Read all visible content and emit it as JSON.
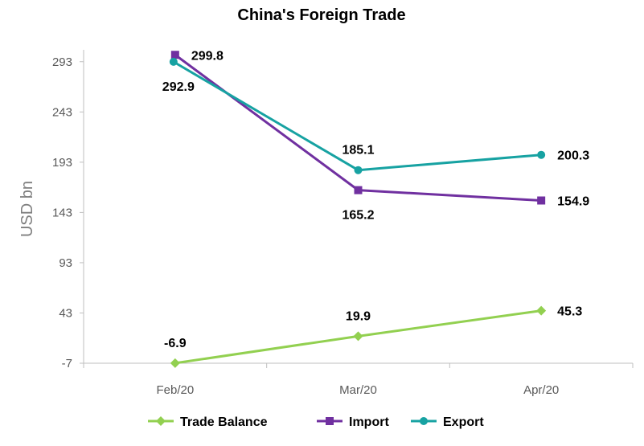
{
  "chart_data": {
    "type": "line",
    "title": "China's Foreign Trade",
    "xlabel": "",
    "ylabel": "USD bn",
    "categories": [
      "Feb/20",
      "Mar/20",
      "Apr/20"
    ],
    "yticks": [
      "-7",
      "43",
      "93",
      "143",
      "193",
      "243",
      "293"
    ],
    "ylim": [
      -7,
      308
    ],
    "grid": false,
    "legend_position": "bottom",
    "series": [
      {
        "name": "Trade Balance",
        "values": [
          -6.9,
          19.9,
          45.3
        ],
        "labels": [
          "-6.9",
          "19.9",
          "45.3"
        ],
        "color": "#92d050",
        "marker": "diamond"
      },
      {
        "name": "Import",
        "values": [
          299.8,
          165.2,
          154.9
        ],
        "labels": [
          "299.8",
          "165.2",
          "154.9"
        ],
        "color": "#7030a0",
        "marker": "square"
      },
      {
        "name": "Export",
        "values": [
          292.9,
          185.1,
          200.3
        ],
        "labels": [
          "292.9",
          "185.1",
          "200.3"
        ],
        "color": "#17a2a2",
        "marker": "circle"
      }
    ]
  }
}
